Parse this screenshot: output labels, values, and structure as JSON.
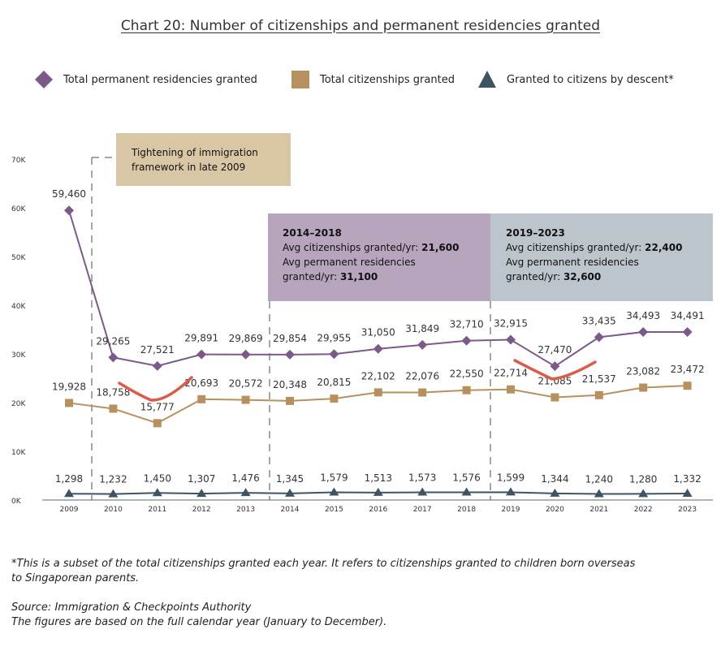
{
  "chart_data": {
    "type": "line",
    "title": "Chart 20: Number of citizenships and permanent residencies granted",
    "x": [
      "2009",
      "2010",
      "2011",
      "2012",
      "2013",
      "2014",
      "2015",
      "2016",
      "2017",
      "2018",
      "2019",
      "2020",
      "2021",
      "2022",
      "2023"
    ],
    "y_ticks": [
      "0K",
      "10K",
      "20K",
      "30K",
      "40K",
      "50K",
      "60K",
      "70K"
    ],
    "ylim": [
      0,
      70000
    ],
    "series": [
      {
        "name": "Total permanent residencies granted",
        "marker": "diamond",
        "color": "#7b5a8a",
        "values": [
          59460,
          29265,
          27521,
          29891,
          29869,
          29854,
          29955,
          31050,
          31849,
          32710,
          32915,
          27470,
          33435,
          34493,
          34491
        ],
        "labels": [
          "59,460",
          "29,265",
          "27,521",
          "29,891",
          "29,869",
          "29,854",
          "29,955",
          "31,050",
          "31,849",
          "32,710",
          "32,915",
          "27,470",
          "33,435",
          "34,493",
          "34,491"
        ]
      },
      {
        "name": "Total citizenships granted",
        "marker": "square",
        "color": "#b8905e",
        "values": [
          19928,
          18758,
          15777,
          20693,
          20572,
          20348,
          20815,
          22102,
          22076,
          22550,
          22714,
          21085,
          21537,
          23082,
          23472
        ],
        "labels": [
          "19,928",
          "18,758",
          "15,777",
          "20,693",
          "20,572",
          "20,348",
          "20,815",
          "22,102",
          "22,076",
          "22,550",
          "22,714",
          "21,085",
          "21,537",
          "23,082",
          "23,472"
        ]
      },
      {
        "name": "Granted to citizens by descent*",
        "marker": "triangle",
        "color": "#3f5463",
        "values": [
          1298,
          1232,
          1450,
          1307,
          1476,
          1345,
          1579,
          1513,
          1573,
          1576,
          1599,
          1344,
          1240,
          1280,
          1332
        ],
        "labels": [
          "1,298",
          "1,232",
          "1,450",
          "1,307",
          "1,476",
          "1,345",
          "1,579",
          "1,513",
          "1,573",
          "1,576",
          "1,599",
          "1,344",
          "1,240",
          "1,280",
          "1,332"
        ]
      }
    ],
    "annotations": {
      "tightening": {
        "text_line1": "Tightening of immigration",
        "text_line2": "framework in late 2009",
        "color": "#d9c6a4"
      },
      "period1": {
        "heading": "2014–2018",
        "line1_prefix": "Avg citizenships granted/yr: ",
        "line1_value": "21,600",
        "line2": "Avg permanent residencies",
        "line3_prefix": "granted/yr: ",
        "line3_value": "31,100",
        "color": "#b7a5bd"
      },
      "period2": {
        "heading": "2019–2023",
        "line1_prefix": "Avg citizenships granted/yr: ",
        "line1_value": "22,400",
        "line2": "Avg permanent residencies",
        "line3_prefix": "granted/yr: ",
        "line3_value": "32,600",
        "color": "#bcc5cb"
      }
    },
    "grid": false,
    "legend_placement": "top"
  },
  "footnote": {
    "line1": "*This is a subset of the total citizenships granted each year. It refers to citizenships granted to children born overseas",
    "line2": "to Singaporean parents."
  },
  "source": {
    "line1": "Source: Immigration & Checkpoints Authority",
    "line2": "The figures are based on the full calendar year (January to December)."
  },
  "colors": {
    "dip_highlight": "#e05a47",
    "dashed_lines": "#888888",
    "axis": "#333333"
  }
}
